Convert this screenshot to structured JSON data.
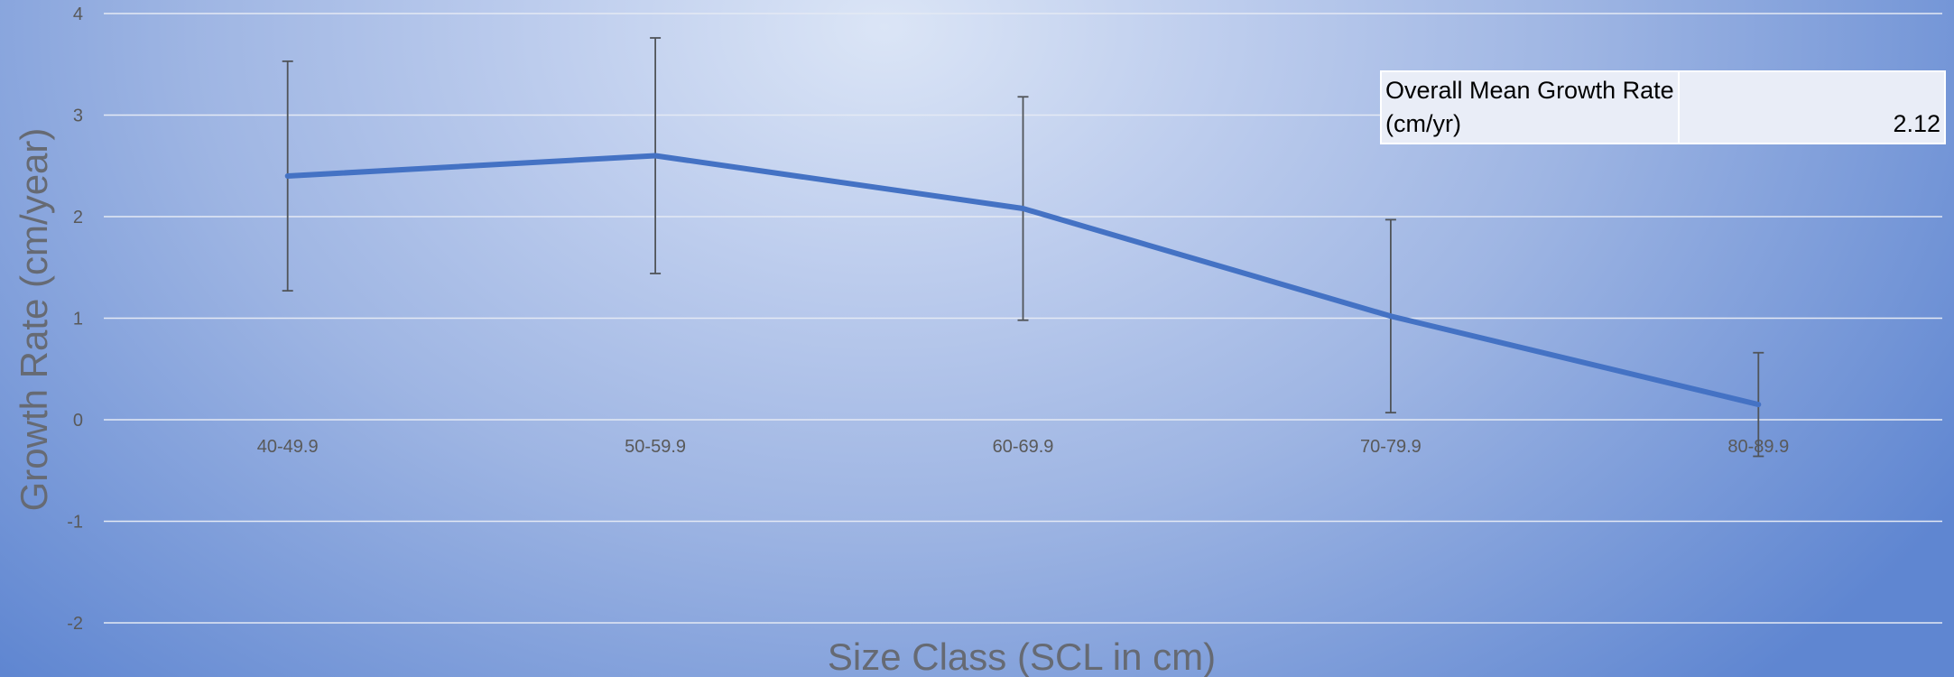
{
  "chart_data": {
    "type": "line",
    "title": "",
    "xlabel": "Size Class (SCL in cm)",
    "ylabel": "Growth Rate (cm/year)",
    "categories": [
      "40-49.9",
      "50-59.9",
      "60-69.9",
      "70-79.9",
      "80-89.9"
    ],
    "series": [
      {
        "name": "",
        "values": [
          2.4,
          2.6,
          2.08,
          1.02,
          0.15
        ],
        "error": [
          1.13,
          1.16,
          1.1,
          0.95,
          0.51
        ]
      }
    ],
    "ylim": [
      -2,
      4
    ],
    "yticks": [
      4,
      3,
      2,
      1,
      0,
      -1,
      -2
    ],
    "grid": true,
    "line_color": "#4472c4",
    "legend": "none"
  },
  "summary_table": {
    "label": "Overall Mean Growth Rate (cm/yr)",
    "value": "2.12"
  }
}
